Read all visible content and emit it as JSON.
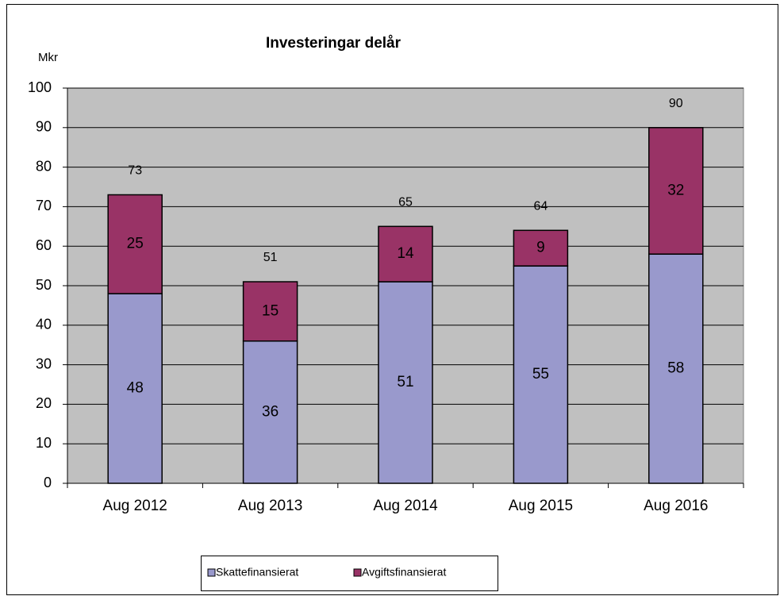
{
  "chart_data": {
    "type": "stacked_bar",
    "title": "Investeringar delår",
    "y_label": "Mkr",
    "categories": [
      "Aug 2012",
      "Aug 2013",
      "Aug 2014",
      "Aug 2015",
      "Aug 2016"
    ],
    "series": [
      {
        "name": "Skattefinansierat",
        "color": "#9999cc",
        "values": [
          48,
          36,
          51,
          55,
          58
        ]
      },
      {
        "name": "Avgiftsfinansierat",
        "color": "#993366",
        "values": [
          25,
          15,
          14,
          9,
          32
        ]
      }
    ],
    "total_labels": [
      73,
      51,
      65,
      64,
      90
    ],
    "ylim": [
      0,
      100
    ],
    "yticks": [
      0,
      10,
      20,
      30,
      40,
      50,
      60,
      70,
      80,
      90,
      100
    ],
    "grid": true,
    "plot_background": "#c0c0c0",
    "legend": "bottom"
  }
}
